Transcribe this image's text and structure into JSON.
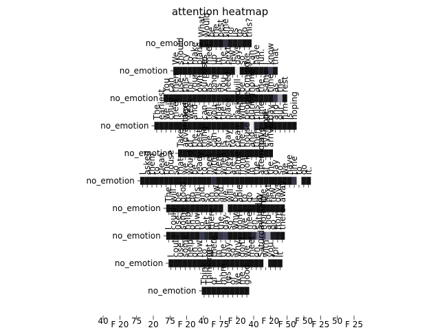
{
  "chart_data": {
    "type": "heatmap",
    "title": "attention heatmap",
    "colormap": {
      "low": "#111111",
      "mid": "#4b4b68",
      "high": "#ffffff"
    },
    "rows": [
      {
        "ylabel": "no_emotion",
        "tokens": [
          "What",
          "would",
          "be",
          "the",
          "best",
          "time",
          "for",
          "us",
          "to",
          "do",
          "this?"
        ],
        "weights": [
          0.02,
          0.03,
          0.02,
          0.04,
          0.02,
          0.3,
          0.05,
          0.04,
          0.1,
          0.02,
          0.03
        ]
      },
      {
        "ylabel": "no_emotion",
        "tokens": [
          "We",
          "should",
          "try",
          "to",
          "make",
          "plans",
          "to",
          "meet",
          "up",
          "in",
          "the",
          "next",
          "few",
          "days",
          "so",
          "we",
          "can",
          "have",
          "fun.",
          "I",
          "know",
          "that"
        ],
        "weights": [
          0.02,
          0.03,
          0.02,
          0.02,
          0.03,
          0.02,
          0.02,
          0.04,
          0.02,
          0.02,
          0.03,
          0.02,
          0.02,
          0.95,
          0.02,
          0.03,
          0.02,
          0.02,
          0.04,
          0.03,
          0.35,
          0.05
        ]
      },
      {
        "ylabel": "no_emotion",
        "tokens": [
          "You",
          "can",
          "then",
          "use",
          "this",
          "for",
          "your",
          "own",
          "purposes",
          "as",
          "long",
          "as",
          "you",
          "need.",
          "I",
          "will",
          "be",
          "coming",
          "home",
          "at",
          "the",
          "same",
          "time",
          "as",
          "the",
          "rest"
        ],
        "weights": [
          0.02,
          0.03,
          0.02,
          0.02,
          0.04,
          0.02,
          0.02,
          0.03,
          0.02,
          0.02,
          0.02,
          0.03,
          0.02,
          0.02,
          0.02,
          0.02,
          0.02,
          0.02,
          0.03,
          0.02,
          0.02,
          0.05,
          0.02,
          0.3,
          0.7,
          0.02
        ]
      },
      {
        "ylabel": "no_emotion",
        "tokens": [
          "The",
          "earliest",
          "we",
          "could",
          "meet",
          "is",
          "next",
          "week",
          "and",
          "I",
          "can",
          "tell",
          "you",
          "that",
          "the",
          "place",
          "is",
          "packed",
          "with",
          "people",
          "during",
          "this",
          "time",
          "of",
          "day",
          "and",
          "our",
          "firm",
          "is",
          "hoping"
        ],
        "weights": [
          0.02,
          0.02,
          0.03,
          0.02,
          0.02,
          0.02,
          0.02,
          0.03,
          0.02,
          0.02,
          0.02,
          0.02,
          0.02,
          0.02,
          0.02,
          0.03,
          0.02,
          0.02,
          0.02,
          0.45,
          0.95,
          0.2,
          0.05,
          0.02,
          0.02,
          0.02,
          0.03,
          0.02,
          0.02,
          0.02
        ]
      },
      {
        "ylabel": "no_emotion",
        "tokens": [
          "Take",
          "advantage",
          "of",
          "the",
          "best",
          "thing",
          "we",
          "can",
          "do",
          "is",
          "stay",
          "to",
          "clean",
          "the",
          "house",
          "and",
          "then",
          "have",
          "everyone",
          "arrived"
        ],
        "weights": [
          0.02,
          0.02,
          0.02,
          0.02,
          0.02,
          0.02,
          0.02,
          0.03,
          0.02,
          0.02,
          0.02,
          0.02,
          0.02,
          0.02,
          0.02,
          0.02,
          0.02,
          0.02,
          0.02,
          0.02
        ]
      },
      {
        "ylabel": "no_emotion",
        "tokens": [
          "I",
          "asked",
          "them",
          "to",
          "clean",
          "the",
          "house",
          "so",
          "that",
          "we",
          "would",
          "be",
          "ready",
          "to",
          "meet",
          "with",
          "them",
          "when",
          "they",
          "are",
          "home",
          "from",
          "work",
          "in",
          "the",
          "afternoon",
          "of",
          "the",
          "day",
          "so",
          "we",
          "have",
          "time",
          "to",
          "do",
          "it."
        ],
        "weights": [
          0.02,
          0.02,
          0.02,
          0.02,
          0.02,
          0.02,
          0.02,
          0.02,
          0.02,
          0.02,
          0.02,
          0.02,
          0.02,
          0.02,
          0.02,
          0.25,
          0.02,
          0.02,
          0.02,
          0.02,
          0.02,
          0.02,
          0.02,
          0.02,
          0.02,
          0.02,
          0.02,
          0.02,
          0.02,
          0.02,
          0.02,
          0.02,
          0.3,
          0.98,
          0.05,
          0.02
        ]
      },
      {
        "ylabel": "no_emotion",
        "tokens": [
          "The",
          "will",
          "be",
          "good",
          "to",
          "do",
          "this",
          "and",
          "so",
          "on",
          "now",
          "and",
          "we",
          "will",
          "be",
          "able",
          "to",
          "do",
          "it",
          "in",
          "the",
          "next",
          "few",
          "days",
          "away"
        ],
        "weights": [
          0.02,
          0.02,
          0.02,
          0.02,
          0.02,
          0.02,
          0.02,
          0.02,
          0.02,
          0.02,
          0.02,
          0.02,
          0.95,
          0.02,
          0.02,
          0.02,
          0.02,
          0.02,
          0.02,
          0.02,
          0.02,
          0.02,
          0.02,
          0.02,
          0.02
        ]
      },
      {
        "ylabel": "no_emotion",
        "tokens": [
          "I",
          "could",
          "use",
          "some",
          "help",
          "on",
          "how",
          "to",
          "get",
          "there",
          "in",
          "the",
          "day",
          "so",
          "why",
          "don't",
          "we",
          "meet",
          "on",
          "Saturday",
          "morning",
          "and",
          "go",
          "from",
          "there"
        ],
        "weights": [
          0.02,
          0.03,
          0.1,
          0.02,
          0.02,
          0.05,
          0.02,
          0.35,
          0.2,
          0.05,
          0.02,
          0.3,
          0.4,
          0.02,
          0.02,
          0.02,
          0.02,
          0.05,
          0.25,
          0.6,
          0.45,
          0.7,
          0.1,
          0.05,
          0.02
        ]
      },
      {
        "ylabel": "no_emotion",
        "tokens": [
          "I",
          "could",
          "use",
          "some",
          "help",
          "on",
          "how",
          "to",
          "get",
          "there",
          "in",
          "the",
          "day",
          "so",
          "why",
          "don't",
          "we",
          "meet",
          "on",
          "Saturday",
          "with",
          "you",
          "for",
          "it"
        ],
        "weights": [
          0.02,
          0.02,
          0.02,
          0.02,
          0.02,
          0.02,
          0.02,
          0.02,
          0.02,
          0.02,
          0.02,
          0.02,
          0.02,
          0.02,
          0.02,
          0.02,
          0.02,
          0.02,
          0.02,
          0.02,
          0.98,
          0.05,
          0.02,
          0.02
        ]
      },
      {
        "ylabel": "no_emotion",
        "tokens": [
          "Think",
          "Thinking",
          "of",
          "it",
          "mhm",
          "Yes",
          "of",
          "we",
          "me",
          "good"
        ],
        "weights": [
          0.02,
          0.02,
          0.02,
          0.02,
          0.02,
          0.02,
          0.02,
          0.02,
          0.02,
          0.02
        ]
      }
    ],
    "bottom_tick_labels": [
      {
        "text": "40",
        "colored": false
      },
      {
        "text": "F 20",
        "colored": false
      },
      {
        "text": "75",
        "colored": false
      },
      {
        "text": "20",
        "colored": false
      },
      {
        "text": "75",
        "colored": false
      },
      {
        "text": "F 20",
        "colored": false
      },
      {
        "text": "40",
        "colored": false
      },
      {
        "text": "F 75",
        "colored": false
      },
      {
        "text": "F 20",
        "colored": false
      },
      {
        "text": "40",
        "colored": false
      },
      {
        "text": "F 20",
        "colored": false
      },
      {
        "text": "F 50",
        "colored": false
      },
      {
        "text": "F 50",
        "colored": false
      },
      {
        "text": "F 25",
        "colored": false
      },
      {
        "text": "50",
        "colored": false
      },
      {
        "text": "F 25",
        "colored": false
      }
    ]
  }
}
